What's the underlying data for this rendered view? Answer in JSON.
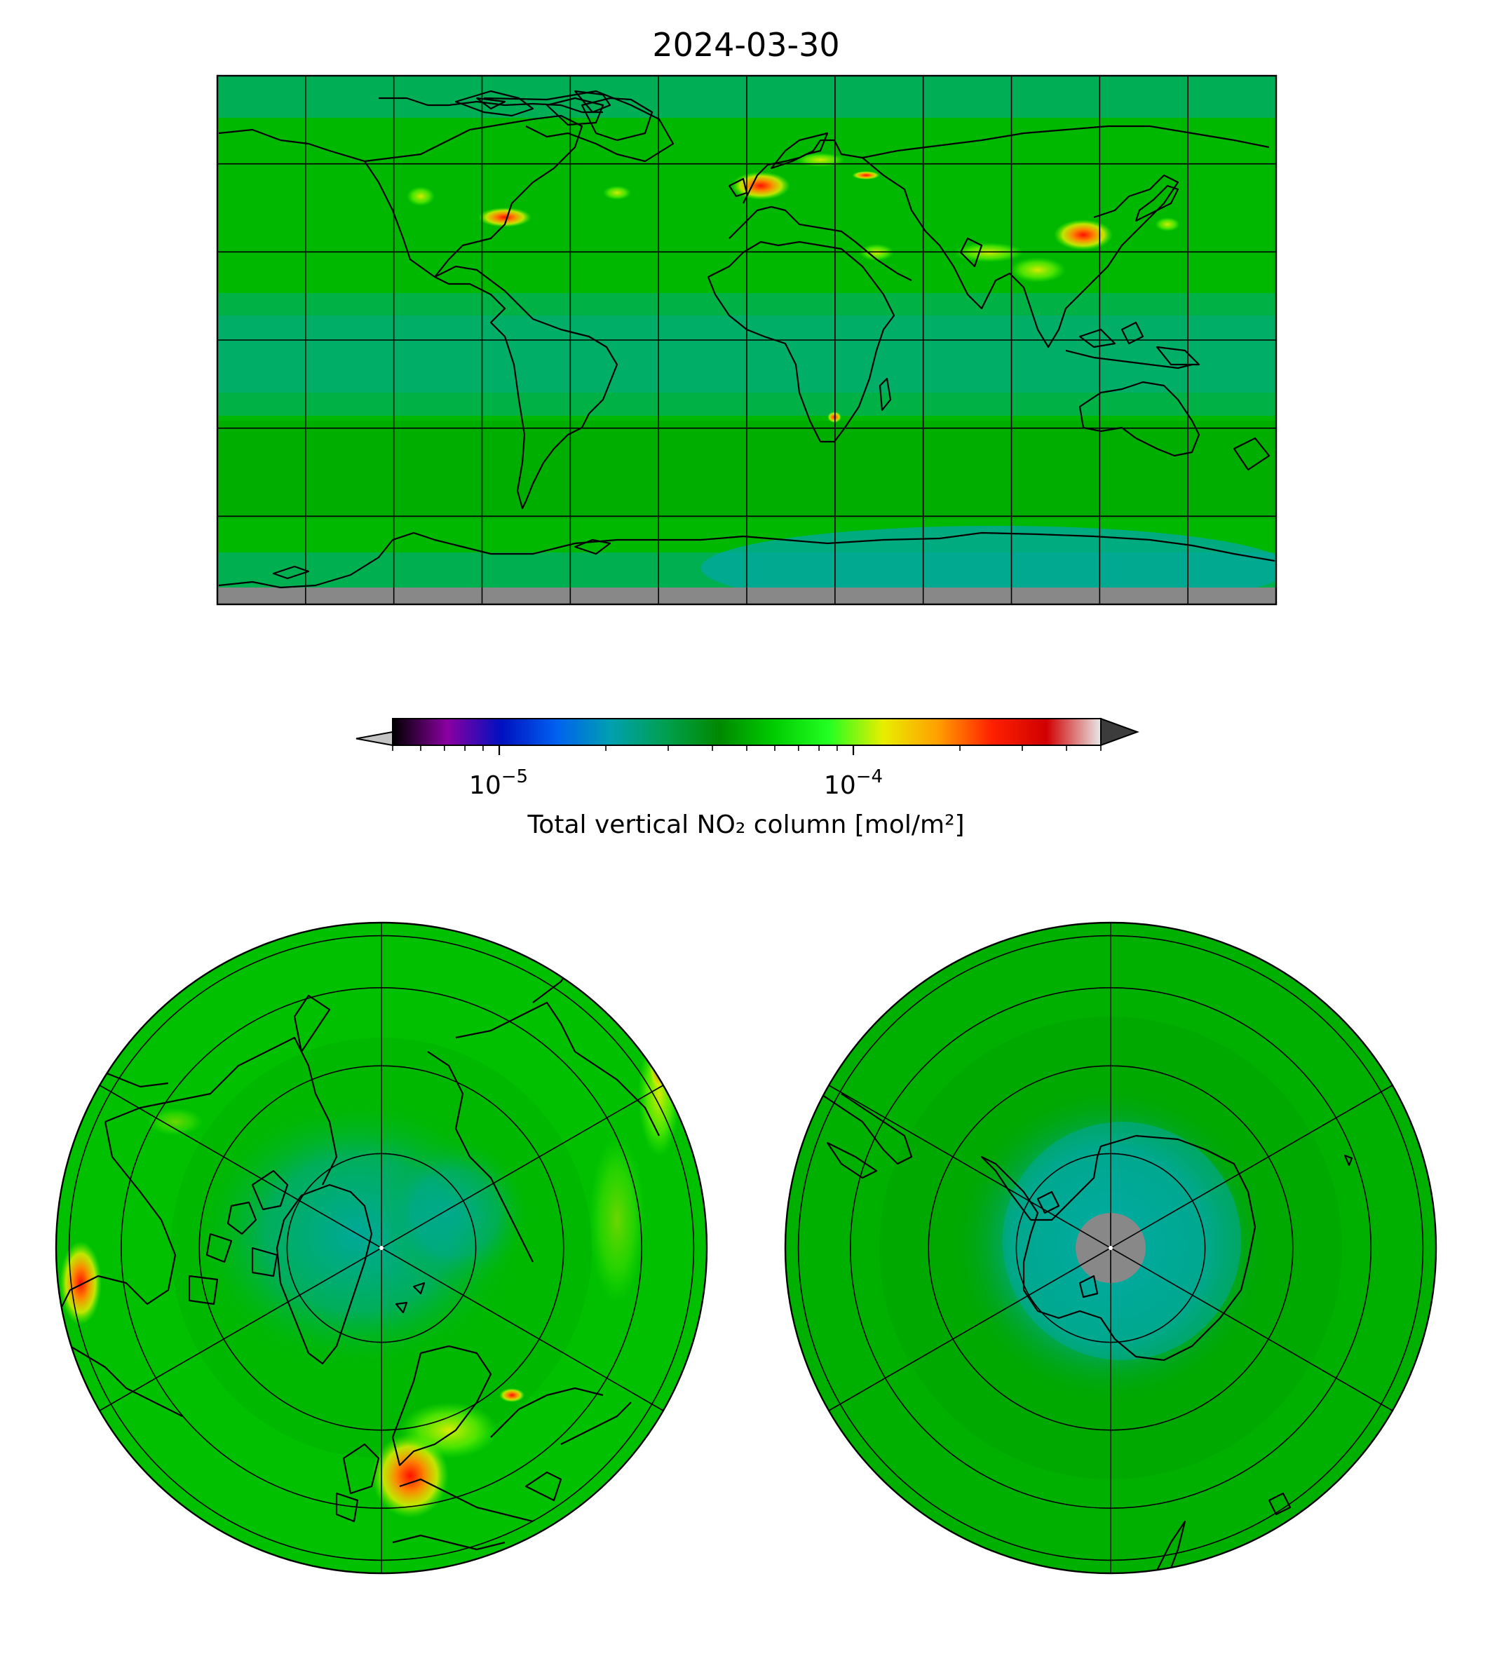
{
  "title": "2024-03-30",
  "colorbar": {
    "label": "Total vertical NO₂ column [mol/m²]",
    "scale": "log",
    "range": [
      5e-06,
      0.0005
    ],
    "ticks": [
      {
        "value": 1e-05,
        "base": "10",
        "exp": "−5"
      },
      {
        "value": 0.0001,
        "base": "10",
        "exp": "−4"
      }
    ],
    "extend": "both",
    "colors": {
      "under": "#c4c4c4",
      "over": "#3c3c3c",
      "stops": [
        "#000000",
        "#8a00a0",
        "#0010c0",
        "#0060f0",
        "#00a0b0",
        "#00a050",
        "#008800",
        "#00cc00",
        "#22ff22",
        "#e8ee00",
        "#ffa000",
        "#ff2000",
        "#d00000",
        "#e8e8e8"
      ]
    }
  },
  "maps": {
    "global": {
      "projection": "Plate Carree",
      "background": "#00b800",
      "nodata": "#888888"
    },
    "north_polar": {
      "projection": "North Polar Stereographic",
      "background": "#00c000"
    },
    "south_polar": {
      "projection": "South Polar Stereographic",
      "background": "#00b000",
      "nodata": "#888888"
    }
  },
  "gridlines": {
    "longitude_step": 30,
    "latitude_step": 30,
    "polar_circles": [
      80,
      60,
      40,
      20
    ]
  }
}
